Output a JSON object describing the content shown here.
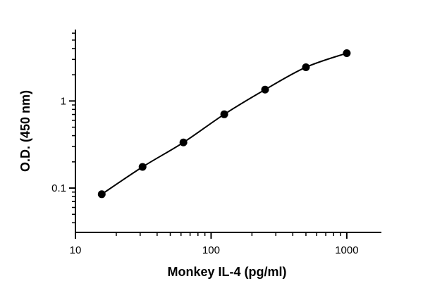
{
  "chart_data": {
    "type": "scatter",
    "x_label": "Monkey IL-4 (pg/ml)",
    "y_label": "O.D. (450 nm)",
    "x": [
      15.625,
      31.25,
      62.5,
      125,
      250,
      500,
      1000
    ],
    "series": [
      {
        "color": "#000000",
        "values": [
          0.085,
          0.175,
          0.334,
          0.703,
          1.35,
          2.44,
          3.54
        ]
      }
    ],
    "xlog": true,
    "ylog": true,
    "xlim": [
      10,
      1800
    ],
    "xticks": [
      10,
      100,
      1000
    ],
    "ylim": [
      0.031,
      6.6
    ],
    "yticks": [
      0.1,
      1
    ],
    "fit_line": true
  }
}
